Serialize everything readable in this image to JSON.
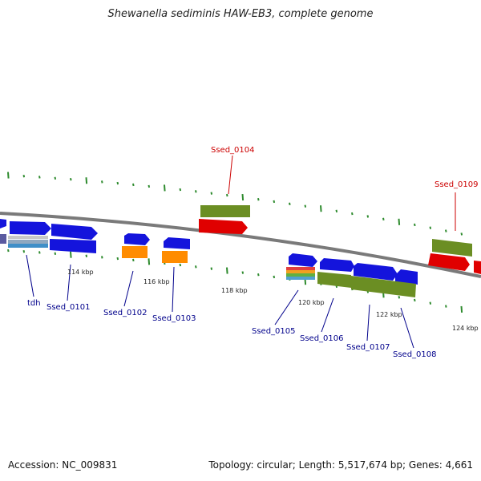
{
  "title": "Shewanella sediminis HAW-EB3, complete genome",
  "footer": {
    "accession": "Accession: NC_009831",
    "summary": "Topology: circular; Length: 5,517,674 bp; Genes: 4,661"
  },
  "colors": {
    "backbone": "#808080",
    "cds_blue": "#1414dc",
    "olive": "#6b8e23",
    "red_feature": "#e00000",
    "orange": "#ff8c00",
    "rna_gray": "#bcbcbc",
    "dotted_track": "#2e8b2e",
    "label_blue": "#00008b",
    "label_red": "#cc0000"
  },
  "ticks": [
    {
      "label": "114 kbp"
    },
    {
      "label": "116 kbp"
    },
    {
      "label": "118 kbp"
    },
    {
      "label": "120 kbp"
    },
    {
      "label": "122 kbp"
    },
    {
      "label": "124 kbp"
    }
  ],
  "gene_labels": [
    {
      "text": "tdh",
      "color": "blue"
    },
    {
      "text": "Ssed_0101",
      "color": "blue"
    },
    {
      "text": "Ssed_0102",
      "color": "blue"
    },
    {
      "text": "Ssed_0103",
      "color": "blue"
    },
    {
      "text": "Ssed_0104",
      "color": "red"
    },
    {
      "text": "Ssed_0105",
      "color": "blue"
    },
    {
      "text": "Ssed_0106",
      "color": "blue"
    },
    {
      "text": "Ssed_0107",
      "color": "blue"
    },
    {
      "text": "Ssed_0108",
      "color": "blue"
    },
    {
      "text": "Ssed_0109",
      "color": "red"
    }
  ]
}
